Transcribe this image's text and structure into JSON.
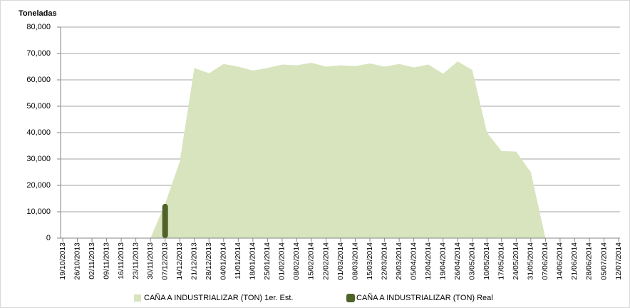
{
  "chart_data": {
    "type": "area",
    "y_axis_label": "Toneladas",
    "categories": [
      "19/10/2013",
      "26/10/2013",
      "02/11/2013",
      "09/11/2013",
      "16/11/2013",
      "23/11/2013",
      "30/11/2013",
      "07/12/2013",
      "14/12/2013",
      "21/12/2013",
      "28/12/2013",
      "04/01/2014",
      "11/01/2014",
      "18/01/2014",
      "25/01/2014",
      "01/02/2014",
      "08/02/2014",
      "15/02/2014",
      "22/02/2014",
      "01/03/2014",
      "08/03/2014",
      "15/03/2014",
      "22/03/2014",
      "29/03/2014",
      "05/04/2014",
      "12/04/2014",
      "19/04/2014",
      "26/04/2014",
      "03/05/2014",
      "10/05/2014",
      "17/05/2014",
      "24/05/2014",
      "31/05/2014",
      "07/06/2014",
      "14/06/2014",
      "21/06/2014",
      "28/06/2014",
      "05/07/2014",
      "12/07/2014"
    ],
    "series": [
      {
        "name": "CAÑA A INDUSTRIALIZAR (TON) 1er. Est.",
        "type": "area",
        "color": "#d7e4bd",
        "values": [
          0,
          0,
          0,
          0,
          0,
          0,
          0,
          13000,
          29000,
          64500,
          62500,
          66000,
          65000,
          63500,
          64500,
          65800,
          65500,
          66500,
          65000,
          65500,
          65200,
          66200,
          65000,
          66000,
          64700,
          65800,
          62300,
          67000,
          63700,
          40000,
          33000,
          32800,
          25000,
          0,
          0,
          0,
          0,
          0,
          0
        ]
      },
      {
        "name": "CAÑA A INDUSTRIALIZAR (TON) Real",
        "type": "bar",
        "color": "#4f6228",
        "values": [
          null,
          null,
          null,
          null,
          null,
          null,
          null,
          13000,
          null,
          null,
          null,
          null,
          null,
          null,
          null,
          null,
          null,
          null,
          null,
          null,
          null,
          null,
          null,
          null,
          null,
          null,
          null,
          null,
          null,
          null,
          null,
          null,
          null,
          null,
          null,
          null,
          null,
          null,
          null
        ]
      }
    ],
    "ylim": [
      0,
      80000
    ],
    "yticks": [
      0,
      {
        "value": 10000,
        "label": "10,000"
      },
      {
        "value": 20000,
        "label": "20,000"
      },
      {
        "value": 30000,
        "label": "30,000"
      },
      {
        "value": 40000,
        "label": "40,000"
      },
      {
        "value": 50000,
        "label": "50,000"
      },
      {
        "value": 60000,
        "label": "60,000"
      },
      {
        "value": 70000,
        "label": "70,000"
      },
      {
        "value": 80000,
        "label": "80,000"
      }
    ],
    "grid": true
  }
}
